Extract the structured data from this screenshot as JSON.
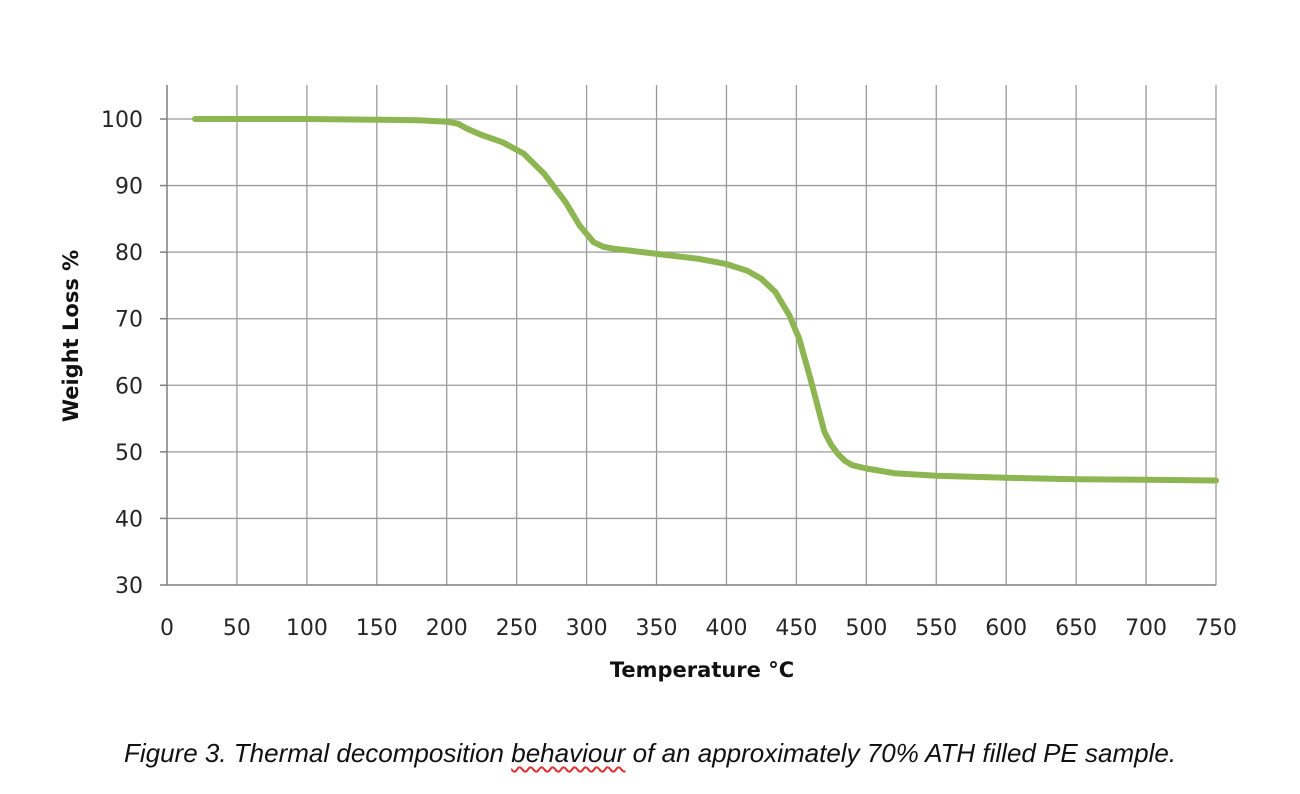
{
  "chart_data": {
    "type": "line",
    "title": "",
    "xlabel": "Temperature °C",
    "ylabel": "Weight Loss %",
    "xlim": [
      0,
      750
    ],
    "ylim": [
      30,
      105
    ],
    "x_ticks": [
      0,
      50,
      100,
      150,
      200,
      250,
      300,
      350,
      400,
      450,
      500,
      550,
      600,
      650,
      700,
      750
    ],
    "y_ticks": [
      30,
      40,
      50,
      60,
      70,
      80,
      90,
      100
    ],
    "grid": true,
    "legend": "none",
    "line_color": "#8db552",
    "series": [
      {
        "x": [
          20,
          50,
          100,
          150,
          180,
          200,
          208,
          215,
          225,
          240,
          255,
          270,
          285,
          295,
          305,
          312,
          320,
          340,
          360,
          380,
          400,
          415,
          425,
          435,
          445,
          452,
          460,
          465,
          470,
          475,
          480,
          485,
          490,
          500,
          520,
          550,
          600,
          650,
          700,
          750
        ],
        "y": [
          100,
          100,
          100,
          99.9,
          99.8,
          99.6,
          99.3,
          98.5,
          97.6,
          96.5,
          94.8,
          91.7,
          87.5,
          84,
          81.5,
          80.8,
          80.5,
          80,
          79.5,
          79,
          78.2,
          77.2,
          76,
          74,
          70.5,
          67,
          61,
          57,
          53,
          51,
          49.6,
          48.6,
          48,
          47.5,
          46.8,
          46.4,
          46.1,
          45.9,
          45.8,
          45.7
        ]
      }
    ]
  },
  "caption": {
    "before": "Figure 3. Thermal decomposition ",
    "flagged_word": "behaviour",
    "after": " of an approximately 70% ATH filled PE sample."
  }
}
